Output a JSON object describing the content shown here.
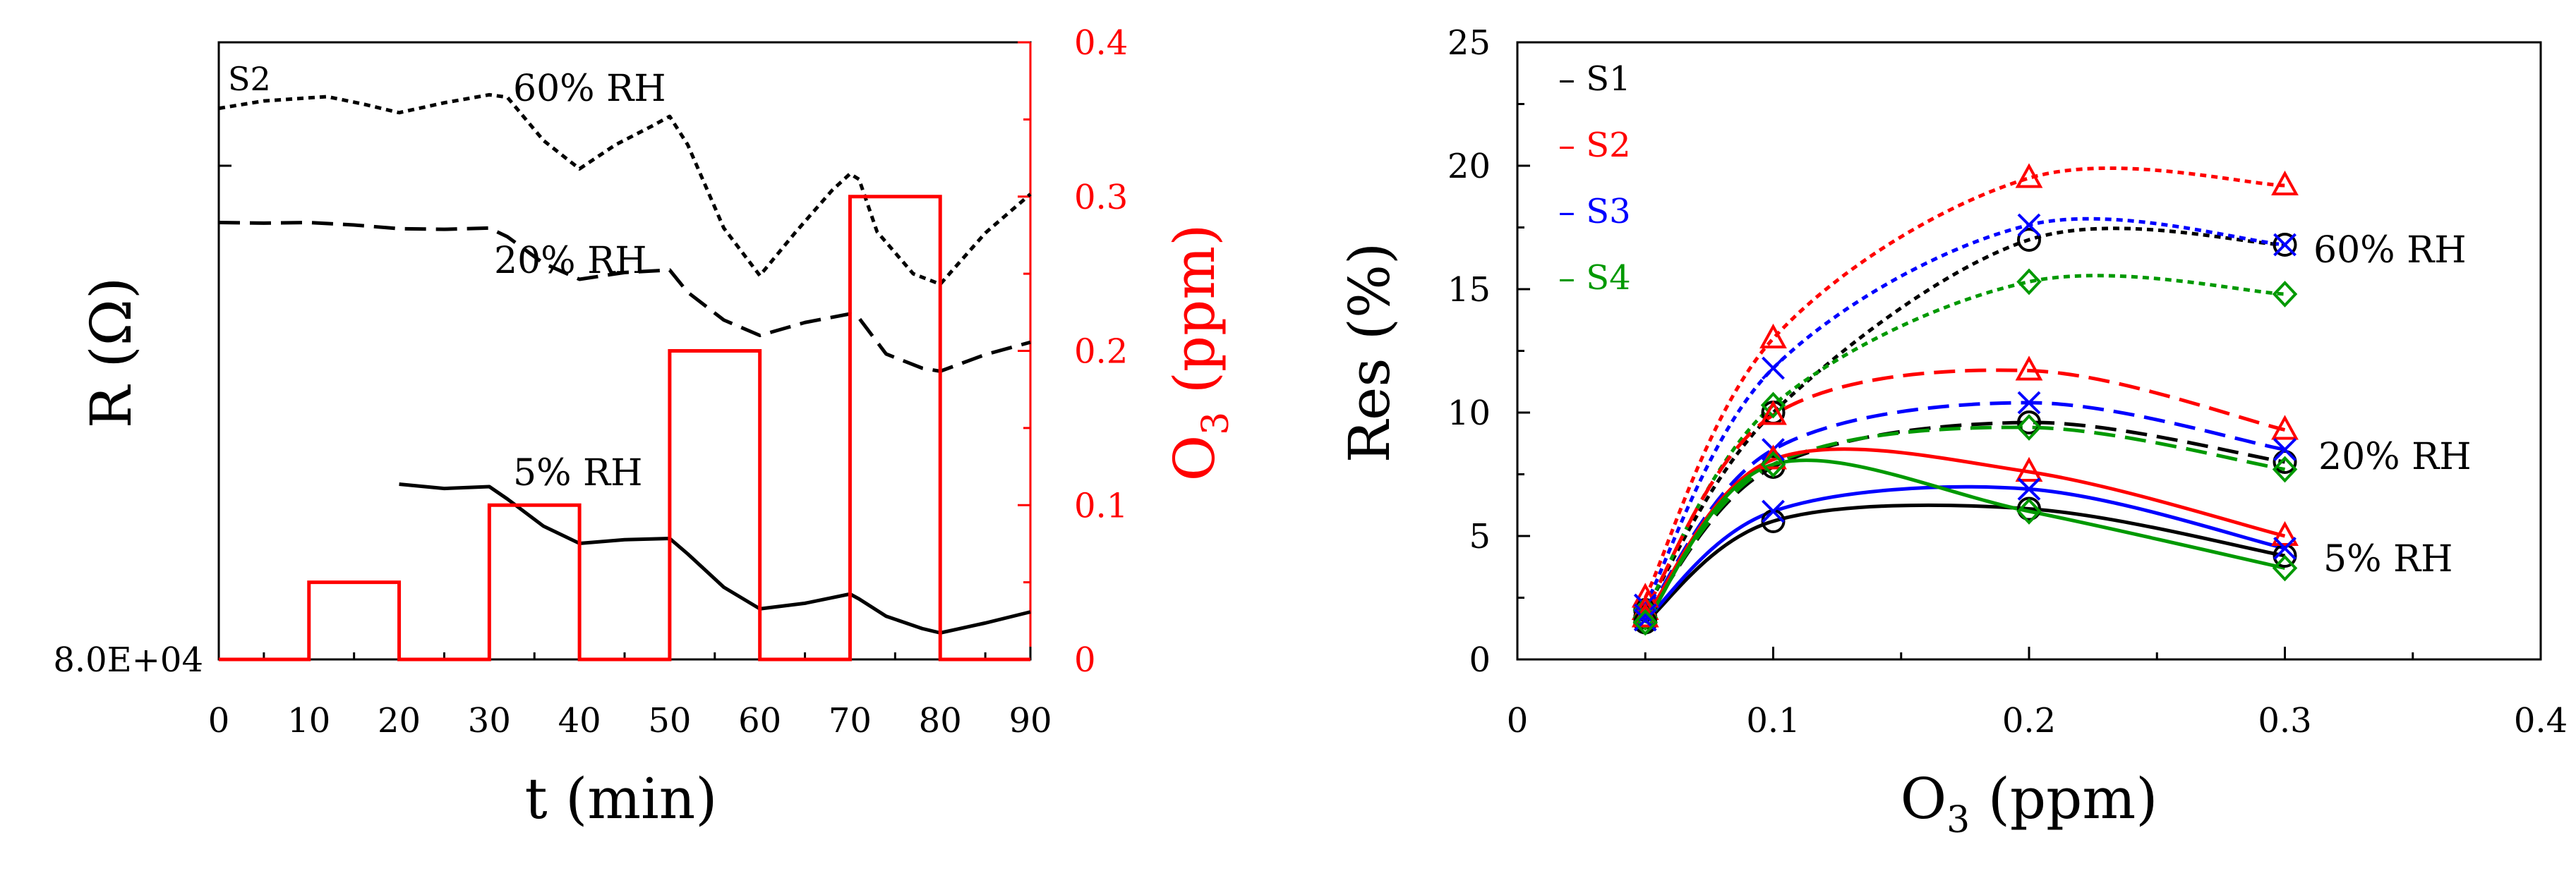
{
  "chart_data": [
    {
      "type": "line",
      "panel_label": "S2",
      "xlabel": "t (min)",
      "ylabel_left": "R (Ω)",
      "ylabel_right": "O3 (ppm)",
      "ylabel_right_main": "O",
      "ylabel_right_sub": "3",
      "ylabel_right_unit": " (ppm)",
      "xlim": [
        0,
        90
      ],
      "x_ticks": [
        0,
        10,
        20,
        30,
        40,
        50,
        60,
        70,
        80,
        90
      ],
      "y_left_tick_label": "8.0E+04",
      "y_right_lim": [
        0,
        0.4
      ],
      "y_right_ticks": [
        "0",
        "0.1",
        "0.2",
        "0.3",
        "0.4"
      ],
      "colors": {
        "resistance": "#000000",
        "ozone": "#ff0000"
      },
      "series": [
        {
          "name": "60% RH",
          "label": "60% RH",
          "style": "dotted",
          "x": [
            0,
            5,
            12,
            16,
            20,
            25,
            30,
            32,
            36,
            40,
            44,
            48,
            50,
            52,
            56,
            60,
            64,
            68,
            70,
            71,
            73,
            77,
            80,
            85,
            90
          ],
          "y": [
            0.893,
            0.905,
            0.912,
            0.9,
            0.886,
            0.902,
            0.915,
            0.911,
            0.841,
            0.795,
            0.834,
            0.864,
            0.88,
            0.834,
            0.699,
            0.622,
            0.693,
            0.76,
            0.787,
            0.778,
            0.693,
            0.625,
            0.608,
            0.691,
            0.754
          ]
        },
        {
          "name": "20% RH",
          "label": "20% RH",
          "style": "dashed",
          "x": [
            0,
            5,
            10,
            15,
            20,
            25,
            30,
            32,
            36,
            40,
            45,
            50,
            52,
            56,
            60,
            65,
            70,
            71,
            74,
            78,
            80,
            85,
            90
          ],
          "y": [
            0.708,
            0.707,
            0.708,
            0.704,
            0.698,
            0.697,
            0.699,
            0.685,
            0.642,
            0.616,
            0.627,
            0.631,
            0.595,
            0.55,
            0.525,
            0.546,
            0.56,
            0.553,
            0.495,
            0.472,
            0.467,
            0.494,
            0.514
          ]
        },
        {
          "name": "5% RH",
          "label": "5% RH",
          "style": "solid",
          "x": [
            20,
            25,
            30,
            32,
            36,
            40,
            45,
            50,
            52,
            56,
            60,
            65,
            70,
            71,
            74,
            78,
            80,
            85,
            90
          ],
          "y": [
            0.284,
            0.277,
            0.28,
            0.26,
            0.216,
            0.188,
            0.194,
            0.196,
            0.171,
            0.117,
            0.082,
            0.091,
            0.106,
            0.098,
            0.07,
            0.05,
            0.043,
            0.059,
            0.077
          ]
        },
        {
          "name": "O3",
          "style": "step",
          "x": [
            0,
            10,
            10,
            20,
            20,
            30,
            30,
            40,
            40,
            50,
            50,
            60,
            60,
            70,
            70,
            80,
            80,
            90
          ],
          "y": [
            0,
            0,
            0.05,
            0.05,
            0,
            0,
            0.1,
            0.1,
            0,
            0,
            0.2,
            0.2,
            0,
            0,
            0.3,
            0.3,
            0,
            0
          ]
        }
      ]
    },
    {
      "type": "line",
      "xlabel": "O3 (ppm)",
      "xlabel_main": "O",
      "xlabel_sub": "3",
      "xlabel_unit": " (ppm)",
      "ylabel": "Res (%)",
      "xlim": [
        0,
        0.4
      ],
      "ylim": [
        0,
        25
      ],
      "x_ticks": [
        "0",
        "0.1",
        "0.2",
        "0.3",
        "0.4"
      ],
      "y_ticks": [
        "0",
        "5",
        "10",
        "15",
        "20",
        "25"
      ],
      "x": [
        0.05,
        0.1,
        0.2,
        0.3
      ],
      "legend": [
        {
          "dash": "–",
          "label": "S1",
          "color": "#000000"
        },
        {
          "dash": "–",
          "label": "S2",
          "color": "#ff0000"
        },
        {
          "dash": "–",
          "label": "S3",
          "color": "#0000ff"
        },
        {
          "dash": "–",
          "label": "S4",
          "color": "#009900"
        }
      ],
      "annotations": [
        "60% RH",
        "20% RH",
        "5% RH"
      ],
      "series": [
        {
          "name": "S1 60% RH",
          "sensor": "S1",
          "rh": "60% RH",
          "marker": "circle",
          "values": [
            2.0,
            10.0,
            17.0,
            16.8
          ]
        },
        {
          "name": "S2 60% RH",
          "sensor": "S2",
          "rh": "60% RH",
          "marker": "triangle",
          "values": [
            2.5,
            13.0,
            19.5,
            19.2
          ]
        },
        {
          "name": "S3 60% RH",
          "sensor": "S3",
          "rh": "60% RH",
          "marker": "x",
          "values": [
            2.2,
            11.8,
            17.6,
            16.8
          ]
        },
        {
          "name": "S4 60% RH",
          "sensor": "S4",
          "rh": "60% RH",
          "marker": "diamond",
          "values": [
            2.0,
            10.3,
            15.3,
            14.8
          ]
        },
        {
          "name": "S1 20% RH",
          "sensor": "S1",
          "rh": "20% RH",
          "marker": "circle",
          "values": [
            1.7,
            7.8,
            9.6,
            8.0
          ]
        },
        {
          "name": "S2 20% RH",
          "sensor": "S2",
          "rh": "20% RH",
          "marker": "triangle",
          "values": [
            2.0,
            9.9,
            11.7,
            9.3
          ]
        },
        {
          "name": "S3 20% RH",
          "sensor": "S3",
          "rh": "20% RH",
          "marker": "x",
          "values": [
            1.8,
            8.5,
            10.4,
            8.5
          ]
        },
        {
          "name": "S4 20% RH",
          "sensor": "S4",
          "rh": "20% RH",
          "marker": "diamond",
          "values": [
            1.7,
            7.9,
            9.4,
            7.7
          ]
        },
        {
          "name": "S1 5% RH",
          "sensor": "S1",
          "rh": "5% RH",
          "marker": "circle",
          "values": [
            1.5,
            5.6,
            6.1,
            4.2
          ]
        },
        {
          "name": "S2 5% RH",
          "sensor": "S2",
          "rh": "5% RH",
          "marker": "triangle",
          "values": [
            1.7,
            8.1,
            7.6,
            5.0
          ]
        },
        {
          "name": "S3 5% RH",
          "sensor": "S3",
          "rh": "5% RH",
          "marker": "x",
          "values": [
            1.6,
            6.0,
            6.9,
            4.5
          ]
        },
        {
          "name": "S4 5% RH",
          "sensor": "S4",
          "rh": "5% RH",
          "marker": "diamond",
          "values": [
            1.5,
            7.9,
            6.0,
            3.7
          ]
        }
      ]
    }
  ]
}
